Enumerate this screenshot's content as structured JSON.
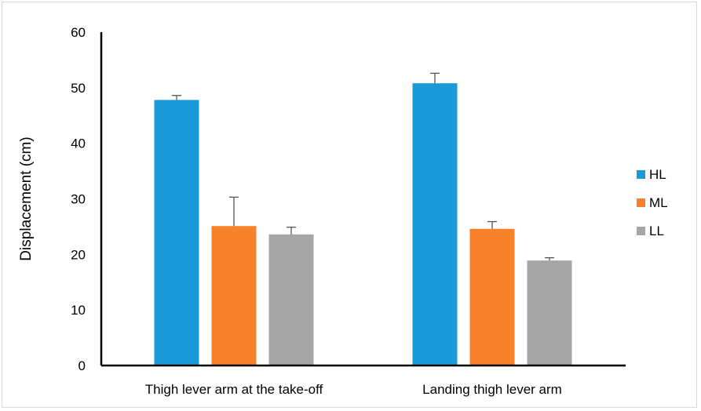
{
  "chart_data": {
    "type": "bar",
    "title": "",
    "xlabel": "",
    "ylabel": "Displacement (cm)",
    "ylim": [
      0,
      60
    ],
    "yticks": [
      0,
      10,
      20,
      30,
      40,
      50,
      60
    ],
    "categories": [
      "Thigh lever arm at the take-off",
      "Landing thigh lever arm"
    ],
    "series": [
      {
        "name": "HL",
        "color": "#1a9ad9",
        "values": [
          47.8,
          50.8
        ],
        "errors": [
          0.8,
          1.8
        ]
      },
      {
        "name": "ML",
        "color": "#f8812b",
        "values": [
          25.1,
          24.6
        ],
        "errors": [
          5.2,
          1.3
        ]
      },
      {
        "name": "LL",
        "color": "#a6a6a6",
        "values": [
          23.6,
          18.9
        ],
        "errors": [
          1.3,
          0.5
        ]
      }
    ],
    "legend_position": "right",
    "grid": false
  }
}
